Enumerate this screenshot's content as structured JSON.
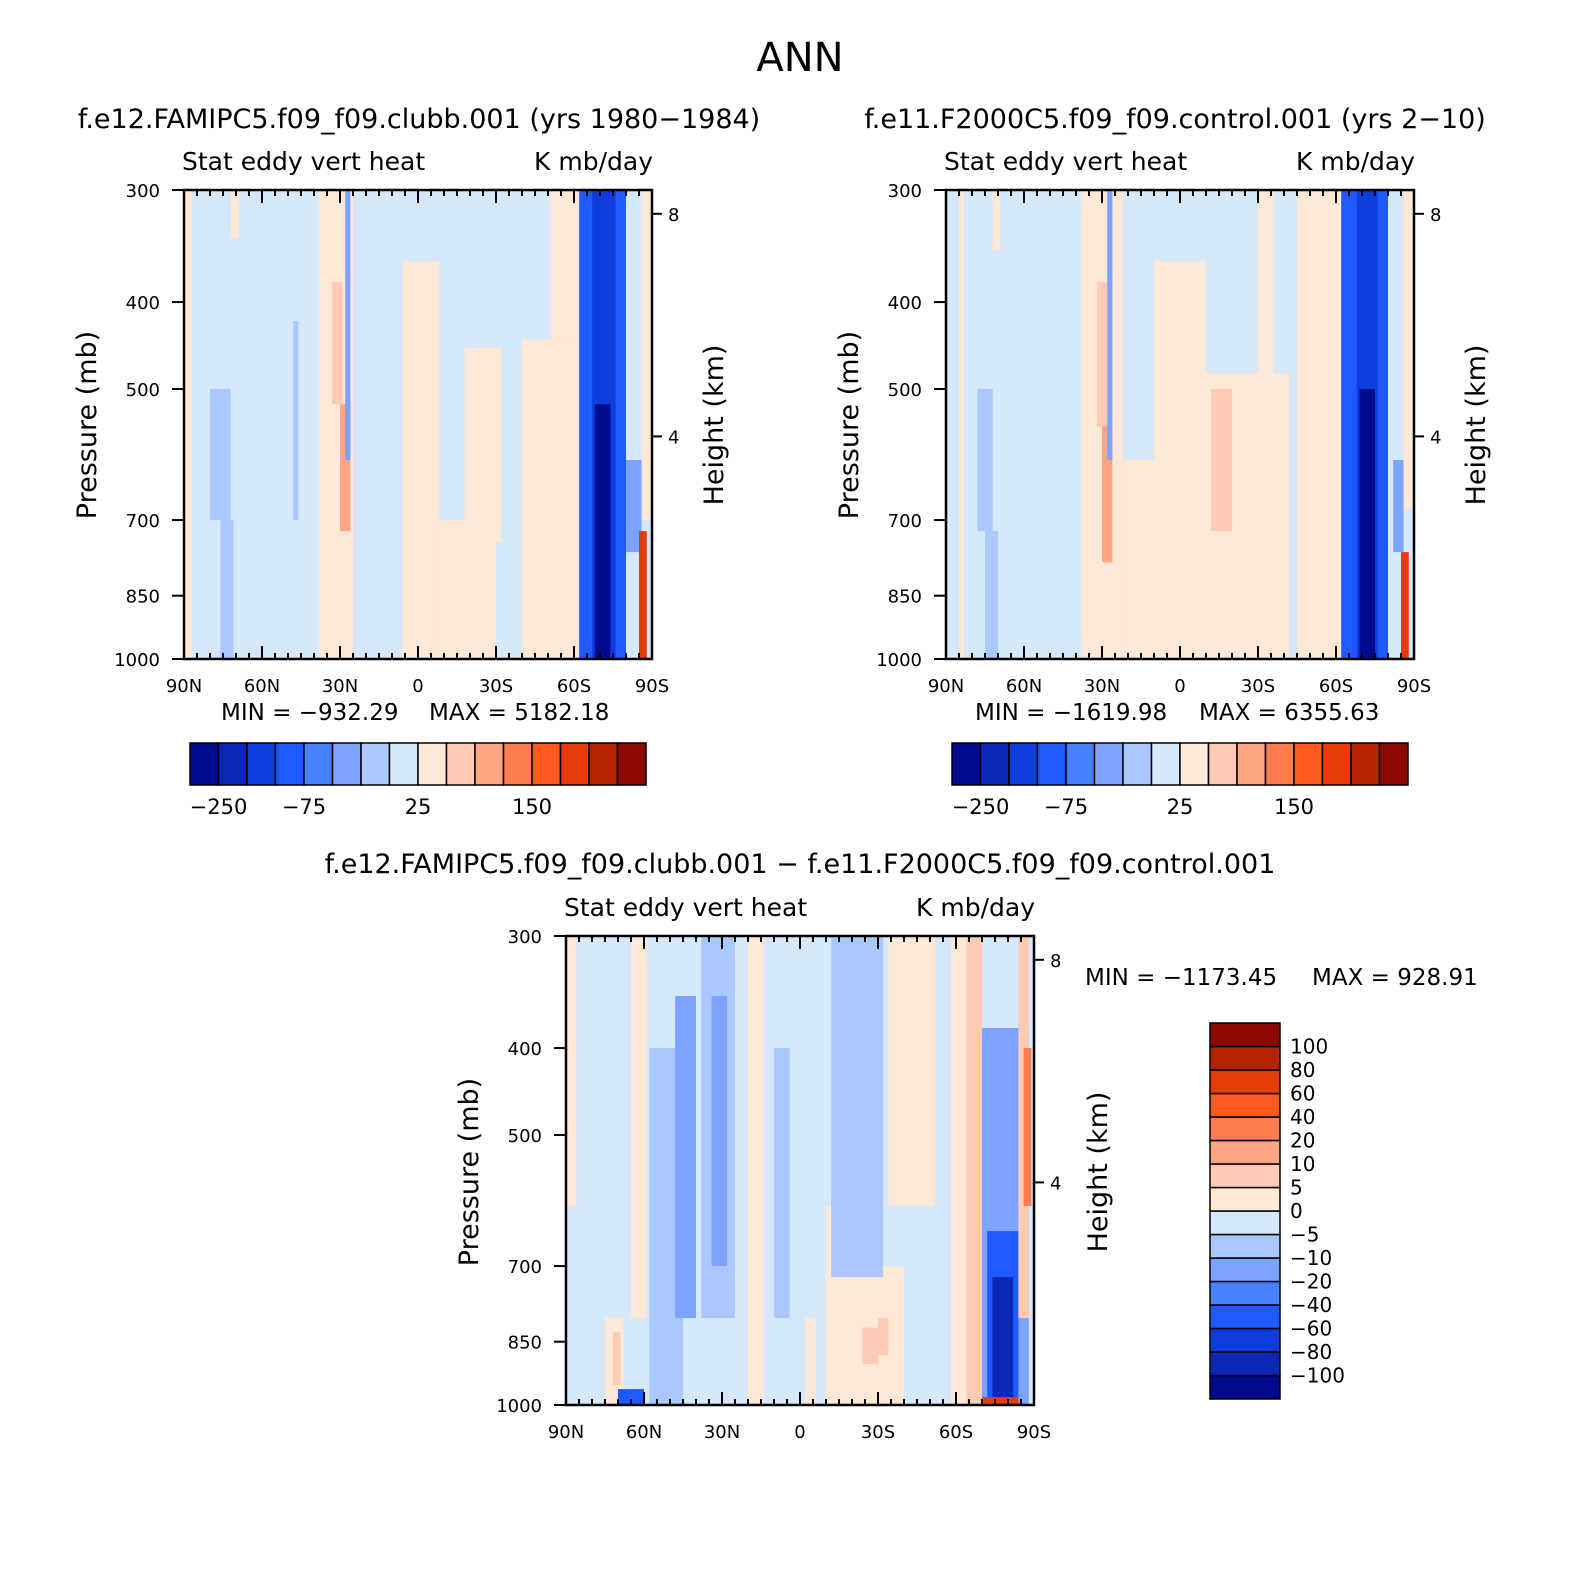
{
  "page": {
    "title": "ANN"
  },
  "colors": {
    "palette": [
      "#000a8c",
      "#0a28b4",
      "#0f3cdc",
      "#1e5aff",
      "#4682ff",
      "#7ba3ff",
      "#aac8ff",
      "#d6e8fc",
      "#ffe8d6",
      "#ffcab4",
      "#ffa583",
      "#ff7c50",
      "#ff5a1e",
      "#e63c0a",
      "#b42300",
      "#8c0a00"
    ]
  },
  "chart_data": [
    {
      "id": "panel-test",
      "type": "contour",
      "case_title": "f.e12.FAMIPC5.f09_f09.clubb.001 (yrs 1980−1984)",
      "left_label": "Stat eddy vert heat",
      "right_label": "K mb/day",
      "xlabel": "",
      "ylabel": "Pressure (mb)",
      "y2label": "Height (km)",
      "x_ticks": [
        "90N",
        "60N",
        "30N",
        "0",
        "30S",
        "60S",
        "90S"
      ],
      "x_range": [
        90,
        -90
      ],
      "y_ticks": [
        "300",
        "400",
        "500",
        "700",
        "850",
        "1000"
      ],
      "y_range": [
        300,
        1000
      ],
      "y2_ticks": [
        "8",
        "4"
      ],
      "min_label": "MIN = −932.29",
      "max_label": "MAX = 5182.18",
      "colorbar": {
        "orientation": "horizontal",
        "labels": [
          "−250",
          "−75",
          "25",
          "150"
        ]
      },
      "regions": [
        {
          "x": [
            90,
            87
          ],
          "p": [
            300,
            1000
          ],
          "level": 8
        },
        {
          "x": [
            72,
            69
          ],
          "p": [
            300,
            340
          ],
          "level": 8
        },
        {
          "x": [
            80,
            72
          ],
          "p": [
            500,
            700
          ],
          "level": 6
        },
        {
          "x": [
            76,
            71
          ],
          "p": [
            700,
            1000
          ],
          "level": 6
        },
        {
          "x": [
            48,
            46
          ],
          "p": [
            420,
            700
          ],
          "level": 6
        },
        {
          "x": [
            38,
            25
          ],
          "p": [
            300,
            1000
          ],
          "level": 8
        },
        {
          "x": [
            33,
            29
          ],
          "p": [
            380,
            520
          ],
          "level": 9
        },
        {
          "x": [
            30,
            26
          ],
          "p": [
            520,
            720
          ],
          "level": 10
        },
        {
          "x": [
            28,
            26
          ],
          "p": [
            300,
            600
          ],
          "level": 5
        },
        {
          "x": [
            6,
            -8
          ],
          "p": [
            360,
            1000
          ],
          "level": 8
        },
        {
          "x": [
            -8,
            -30
          ],
          "p": [
            700,
            1000
          ],
          "level": 8
        },
        {
          "x": [
            -18,
            -32
          ],
          "p": [
            450,
            740
          ],
          "level": 8
        },
        {
          "x": [
            -40,
            -62
          ],
          "p": [
            440,
            1000
          ],
          "level": 8
        },
        {
          "x": [
            -51,
            -62
          ],
          "p": [
            300,
            440
          ],
          "level": 8
        },
        {
          "x": [
            -62,
            -80
          ],
          "p": [
            300,
            1000
          ],
          "level": 3
        },
        {
          "x": [
            -67,
            -76
          ],
          "p": [
            300,
            1000
          ],
          "level": 2
        },
        {
          "x": [
            -68,
            -74
          ],
          "p": [
            520,
            1000
          ],
          "level": 0
        },
        {
          "x": [
            -80,
            -86
          ],
          "p": [
            600,
            760
          ],
          "level": 5
        },
        {
          "x": [
            -85,
            -88
          ],
          "p": [
            720,
            1000
          ],
          "level": 13
        },
        {
          "x": [
            -86,
            -90
          ],
          "p": [
            300,
            700
          ],
          "level": 8
        }
      ]
    },
    {
      "id": "panel-control",
      "type": "contour",
      "case_title": "f.e11.F2000C5.f09_f09.control.001 (yrs 2−10)",
      "left_label": "Stat eddy vert heat",
      "right_label": "K mb/day",
      "xlabel": "",
      "ylabel": "Pressure (mb)",
      "y2label": "Height (km)",
      "x_ticks": [
        "90N",
        "60N",
        "30N",
        "0",
        "30S",
        "60S",
        "90S"
      ],
      "x_range": [
        90,
        -90
      ],
      "y_ticks": [
        "300",
        "400",
        "500",
        "700",
        "850",
        "1000"
      ],
      "y_range": [
        300,
        1000
      ],
      "y2_ticks": [
        "8",
        "4"
      ],
      "min_label": "MIN = −1619.98",
      "max_label": "MAX = 6355.63",
      "colorbar": {
        "orientation": "horizontal",
        "labels": [
          "−250",
          "−75",
          "25",
          "150"
        ]
      },
      "regions": [
        {
          "x": [
            85,
            83
          ],
          "p": [
            300,
            1000
          ],
          "level": 8
        },
        {
          "x": [
            72,
            69
          ],
          "p": [
            300,
            350
          ],
          "level": 8
        },
        {
          "x": [
            78,
            72
          ],
          "p": [
            500,
            720
          ],
          "level": 6
        },
        {
          "x": [
            75,
            70
          ],
          "p": [
            720,
            1000
          ],
          "level": 6
        },
        {
          "x": [
            38,
            22
          ],
          "p": [
            300,
            1000
          ],
          "level": 8
        },
        {
          "x": [
            32,
            28
          ],
          "p": [
            380,
            550
          ],
          "level": 9
        },
        {
          "x": [
            30,
            26
          ],
          "p": [
            550,
            780
          ],
          "level": 10
        },
        {
          "x": [
            28,
            26
          ],
          "p": [
            300,
            600
          ],
          "level": 5
        },
        {
          "x": [
            22,
            0
          ],
          "p": [
            600,
            1000
          ],
          "level": 8
        },
        {
          "x": [
            10,
            -10
          ],
          "p": [
            360,
            1000
          ],
          "level": 8
        },
        {
          "x": [
            -10,
            -42
          ],
          "p": [
            480,
            1000
          ],
          "level": 8
        },
        {
          "x": [
            -12,
            -20
          ],
          "p": [
            500,
            720
          ],
          "level": 9
        },
        {
          "x": [
            -30,
            -36
          ],
          "p": [
            300,
            600
          ],
          "level": 8
        },
        {
          "x": [
            -45,
            -62
          ],
          "p": [
            300,
            1000
          ],
          "level": 8
        },
        {
          "x": [
            -62,
            -80
          ],
          "p": [
            300,
            1000
          ],
          "level": 3
        },
        {
          "x": [
            -68,
            -76
          ],
          "p": [
            300,
            1000
          ],
          "level": 2
        },
        {
          "x": [
            -69,
            -75
          ],
          "p": [
            500,
            1000
          ],
          "level": 0
        },
        {
          "x": [
            -82,
            -86
          ],
          "p": [
            600,
            760
          ],
          "level": 5
        },
        {
          "x": [
            -85,
            -88
          ],
          "p": [
            760,
            1000
          ],
          "level": 13
        },
        {
          "x": [
            -86,
            -90
          ],
          "p": [
            300,
            680
          ],
          "level": 8
        }
      ]
    },
    {
      "id": "panel-diff",
      "type": "contour",
      "case_title": "f.e12.FAMIPC5.f09_f09.clubb.001 − f.e11.F2000C5.f09_f09.control.001",
      "left_label": "Stat eddy vert heat",
      "right_label": "K mb/day",
      "xlabel": "",
      "ylabel": "Pressure (mb)",
      "y2label": "Height (km)",
      "x_ticks": [
        "90N",
        "60N",
        "30N",
        "0",
        "30S",
        "60S",
        "90S"
      ],
      "x_range": [
        90,
        -90
      ],
      "y_ticks": [
        "300",
        "400",
        "500",
        "700",
        "850",
        "1000"
      ],
      "y_range": [
        300,
        1000
      ],
      "y2_ticks": [
        "8",
        "4"
      ],
      "min_label": "MIN = −1173.45",
      "max_label": "MAX = 928.91",
      "colorbar": {
        "orientation": "vertical",
        "labels": [
          "100",
          "80",
          "60",
          "40",
          "20",
          "10",
          "5",
          "0",
          "−5",
          "−10",
          "−20",
          "−40",
          "−60",
          "−80",
          "−100"
        ]
      },
      "regions": [
        {
          "x": [
            90,
            86
          ],
          "p": [
            300,
            600
          ],
          "level": 8
        },
        {
          "x": [
            75,
            68
          ],
          "p": [
            800,
            1000
          ],
          "level": 8
        },
        {
          "x": [
            72,
            69
          ],
          "p": [
            830,
            950
          ],
          "level": 9
        },
        {
          "x": [
            70,
            60
          ],
          "p": [
            960,
            1000
          ],
          "level": 3
        },
        {
          "x": [
            65,
            59
          ],
          "p": [
            300,
            800
          ],
          "level": 8
        },
        {
          "x": [
            58,
            45
          ],
          "p": [
            400,
            1000
          ],
          "level": 6
        },
        {
          "x": [
            48,
            40
          ],
          "p": [
            350,
            800
          ],
          "level": 5
        },
        {
          "x": [
            38,
            25
          ],
          "p": [
            300,
            800
          ],
          "level": 6
        },
        {
          "x": [
            34,
            28
          ],
          "p": [
            350,
            700
          ],
          "level": 5
        },
        {
          "x": [
            20,
            14
          ],
          "p": [
            300,
            1000
          ],
          "level": 8
        },
        {
          "x": [
            10,
            4
          ],
          "p": [
            400,
            800
          ],
          "level": 6
        },
        {
          "x": [
            -2,
            -6
          ],
          "p": [
            800,
            1000
          ],
          "level": 8
        },
        {
          "x": [
            -10,
            -20
          ],
          "p": [
            600,
            1000
          ],
          "level": 8
        },
        {
          "x": [
            -20,
            -40
          ],
          "p": [
            700,
            1000
          ],
          "level": 8
        },
        {
          "x": [
            -24,
            -30
          ],
          "p": [
            820,
            900
          ],
          "level": 9
        },
        {
          "x": [
            -30,
            -34
          ],
          "p": [
            800,
            880
          ],
          "level": 9
        },
        {
          "x": [
            -12,
            -32
          ],
          "p": [
            300,
            720
          ],
          "level": 6
        },
        {
          "x": [
            -34,
            -52
          ],
          "p": [
            300,
            600
          ],
          "level": 8
        },
        {
          "x": [
            -58,
            -64
          ],
          "p": [
            300,
            1000
          ],
          "level": 8
        },
        {
          "x": [
            -64,
            -70
          ],
          "p": [
            300,
            1000
          ],
          "level": 9
        },
        {
          "x": [
            -70,
            -88
          ],
          "p": [
            380,
            1000
          ],
          "level": 5
        },
        {
          "x": [
            -72,
            -84
          ],
          "p": [
            640,
            1000
          ],
          "level": 3
        },
        {
          "x": [
            -74,
            -82
          ],
          "p": [
            720,
            980
          ],
          "level": 1
        },
        {
          "x": [
            -84,
            -88
          ],
          "p": [
            300,
            800
          ],
          "level": 9
        },
        {
          "x": [
            -86,
            -89
          ],
          "p": [
            400,
            600
          ],
          "level": 11
        },
        {
          "x": [
            -70,
            -84
          ],
          "p": [
            980,
            1000
          ],
          "level": 13
        }
      ]
    }
  ]
}
